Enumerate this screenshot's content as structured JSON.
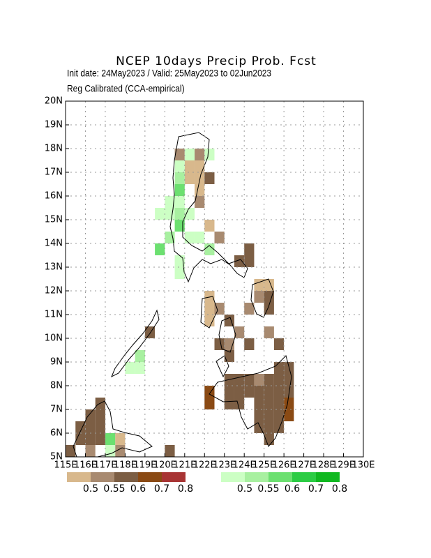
{
  "map": {
    "type": "grid",
    "title": "NCEP 10days Precip Prob. Fcst",
    "subtitle": "Init date: 24May2023 / Valid: 25May2023 to 02Jun2023",
    "note": "Reg Calibrated (CCA-empirical)",
    "xlim": [
      115,
      130
    ],
    "ylim": [
      5,
      20
    ],
    "grid": true,
    "xticks": [
      {
        "value": 115,
        "label": "115E"
      },
      {
        "value": 116,
        "label": "116E"
      },
      {
        "value": 117,
        "label": "117E"
      },
      {
        "value": 118,
        "label": "118E"
      },
      {
        "value": 119,
        "label": "119E"
      },
      {
        "value": 120,
        "label": "120E"
      },
      {
        "value": 121,
        "label": "121E"
      },
      {
        "value": 122,
        "label": "122E"
      },
      {
        "value": 123,
        "label": "123E"
      },
      {
        "value": 124,
        "label": "124E"
      },
      {
        "value": 125,
        "label": "125E"
      },
      {
        "value": 126,
        "label": "126E"
      },
      {
        "value": 127,
        "label": "127E"
      },
      {
        "value": 128,
        "label": "128E"
      },
      {
        "value": 129,
        "label": "129E"
      },
      {
        "value": 130,
        "label": "130E"
      }
    ],
    "yticks": [
      {
        "value": 5,
        "label": "5N"
      },
      {
        "value": 6,
        "label": "6N"
      },
      {
        "value": 7,
        "label": "7N"
      },
      {
        "value": 8,
        "label": "8N"
      },
      {
        "value": 9,
        "label": "9N"
      },
      {
        "value": 10,
        "label": "10N"
      },
      {
        "value": 11,
        "label": "11N"
      },
      {
        "value": 12,
        "label": "12N"
      },
      {
        "value": 13,
        "label": "13N"
      },
      {
        "value": 14,
        "label": "14N"
      },
      {
        "value": 15,
        "label": "15N"
      },
      {
        "value": 16,
        "label": "16N"
      },
      {
        "value": 17,
        "label": "17N"
      },
      {
        "value": 18,
        "label": "18N"
      },
      {
        "value": 19,
        "label": "19N"
      },
      {
        "value": 20,
        "label": "20N"
      }
    ],
    "colorbars": [
      {
        "colors": [
          "#d8b88c",
          "#a88a70",
          "#7c5e44",
          "#8a4a14",
          "#a83434"
        ],
        "bounds": [
          0.5,
          0.55,
          0.6,
          0.7,
          0.8
        ]
      },
      {
        "colors": [
          "#ccffc4",
          "#a8f0a0",
          "#6ce070",
          "#2ccc44",
          "#10b820"
        ],
        "bounds": [
          0.5,
          0.55,
          0.6,
          0.7,
          0.8
        ]
      }
    ],
    "dry_cells": [
      [
        120.5,
        17.5,
        0.57
      ],
      [
        121.5,
        17.5,
        0.57
      ],
      [
        121,
        17,
        0.52
      ],
      [
        121.5,
        17,
        0.52
      ],
      [
        121,
        16.5,
        0.52
      ],
      [
        121.5,
        16.5,
        0.52
      ],
      [
        122,
        16.5,
        0.65
      ],
      [
        121.5,
        16,
        0.52
      ],
      [
        121.5,
        15.5,
        0.57
      ],
      [
        122,
        14.5,
        0.52
      ],
      [
        122.5,
        14,
        0.57
      ],
      [
        124,
        13.5,
        0.65
      ],
      [
        123.5,
        13,
        0.65
      ],
      [
        124,
        13,
        0.65
      ],
      [
        124.5,
        12,
        0.52
      ],
      [
        125,
        12,
        0.52
      ],
      [
        124.5,
        11.5,
        0.57
      ],
      [
        125,
        11.5,
        0.65
      ],
      [
        125,
        11,
        0.65
      ],
      [
        124,
        11,
        0.57
      ],
      [
        122,
        11.5,
        0.52
      ],
      [
        122,
        11,
        0.52
      ],
      [
        122,
        10.5,
        0.52
      ],
      [
        122.5,
        11,
        0.57
      ],
      [
        123,
        10.5,
        0.65
      ],
      [
        123.5,
        10,
        0.57
      ],
      [
        123,
        9.5,
        0.57
      ],
      [
        122.5,
        9.5,
        0.65
      ],
      [
        123,
        9,
        0.65
      ],
      [
        124,
        9.5,
        0.65
      ],
      [
        125,
        10,
        0.57
      ],
      [
        125.5,
        9.5,
        0.65
      ],
      [
        125.5,
        8.5,
        0.65
      ],
      [
        126,
        8.5,
        0.65
      ],
      [
        123,
        8,
        0.65
      ],
      [
        123.5,
        8,
        0.65
      ],
      [
        124,
        8,
        0.65
      ],
      [
        124.5,
        8,
        0.57
      ],
      [
        125,
        8,
        0.65
      ],
      [
        125.5,
        8,
        0.65
      ],
      [
        126,
        8,
        0.65
      ],
      [
        123,
        7.5,
        0.65
      ],
      [
        123.5,
        7.5,
        0.65
      ],
      [
        124,
        7.5,
        0.65
      ],
      [
        124.5,
        7.5,
        0.65
      ],
      [
        125,
        7.5,
        0.65
      ],
      [
        125.5,
        7.5,
        0.65
      ],
      [
        126,
        7.5,
        0.65
      ],
      [
        123,
        7,
        0.65
      ],
      [
        123.5,
        7,
        0.65
      ],
      [
        124.5,
        7,
        0.65
      ],
      [
        125,
        7,
        0.65
      ],
      [
        125.5,
        7,
        0.65
      ],
      [
        126,
        7,
        0.75
      ],
      [
        124.5,
        6.5,
        0.65
      ],
      [
        125,
        6.5,
        0.65
      ],
      [
        125.5,
        6.5,
        0.65
      ],
      [
        126,
        6.5,
        0.75
      ],
      [
        124.5,
        6,
        0.65
      ],
      [
        125,
        6,
        0.65
      ],
      [
        125.5,
        6,
        0.65
      ],
      [
        125,
        5.5,
        0.65
      ],
      [
        122,
        7.5,
        0.75
      ],
      [
        122,
        7,
        0.75
      ],
      [
        116.5,
        7,
        0.65
      ],
      [
        116,
        6.5,
        0.65
      ],
      [
        116.5,
        6.5,
        0.65
      ],
      [
        115.5,
        6,
        0.65
      ],
      [
        116,
        6,
        0.65
      ],
      [
        116.5,
        6,
        0.65
      ],
      [
        115.5,
        5.5,
        0.65
      ],
      [
        116,
        5.5,
        0.65
      ],
      [
        116.5,
        5.5,
        0.65
      ],
      [
        115,
        5,
        0.65
      ],
      [
        116,
        5,
        0.57
      ],
      [
        117.5,
        5.5,
        0.52
      ],
      [
        117.5,
        5,
        0.57
      ],
      [
        119,
        10,
        0.65
      ],
      [
        120,
        5,
        0.65
      ]
    ],
    "wet_cells": [
      [
        121,
        17.5,
        0.52
      ],
      [
        122,
        17.5,
        0.52
      ],
      [
        120.5,
        17,
        0.52
      ],
      [
        120.5,
        16.5,
        0.57
      ],
      [
        120.5,
        16,
        0.65
      ],
      [
        120,
        15.5,
        0.52
      ],
      [
        120.5,
        15.5,
        0.52
      ],
      [
        119.5,
        15,
        0.52
      ],
      [
        120,
        15,
        0.52
      ],
      [
        120.5,
        15,
        0.57
      ],
      [
        121,
        15,
        0.52
      ],
      [
        120.5,
        14.5,
        0.65
      ],
      [
        120,
        14,
        0.57
      ],
      [
        121,
        14,
        0.52
      ],
      [
        121.5,
        14,
        0.52
      ],
      [
        119.5,
        13.5,
        0.65
      ],
      [
        120.5,
        13,
        0.52
      ],
      [
        120.5,
        12.5,
        0.52
      ],
      [
        122,
        13.5,
        0.57
      ],
      [
        118.5,
        9,
        0.57
      ],
      [
        118.5,
        8.5,
        0.52
      ],
      [
        118,
        8.5,
        0.52
      ],
      [
        117,
        5.5,
        0.65
      ],
      [
        117,
        5,
        0.52
      ]
    ]
  }
}
